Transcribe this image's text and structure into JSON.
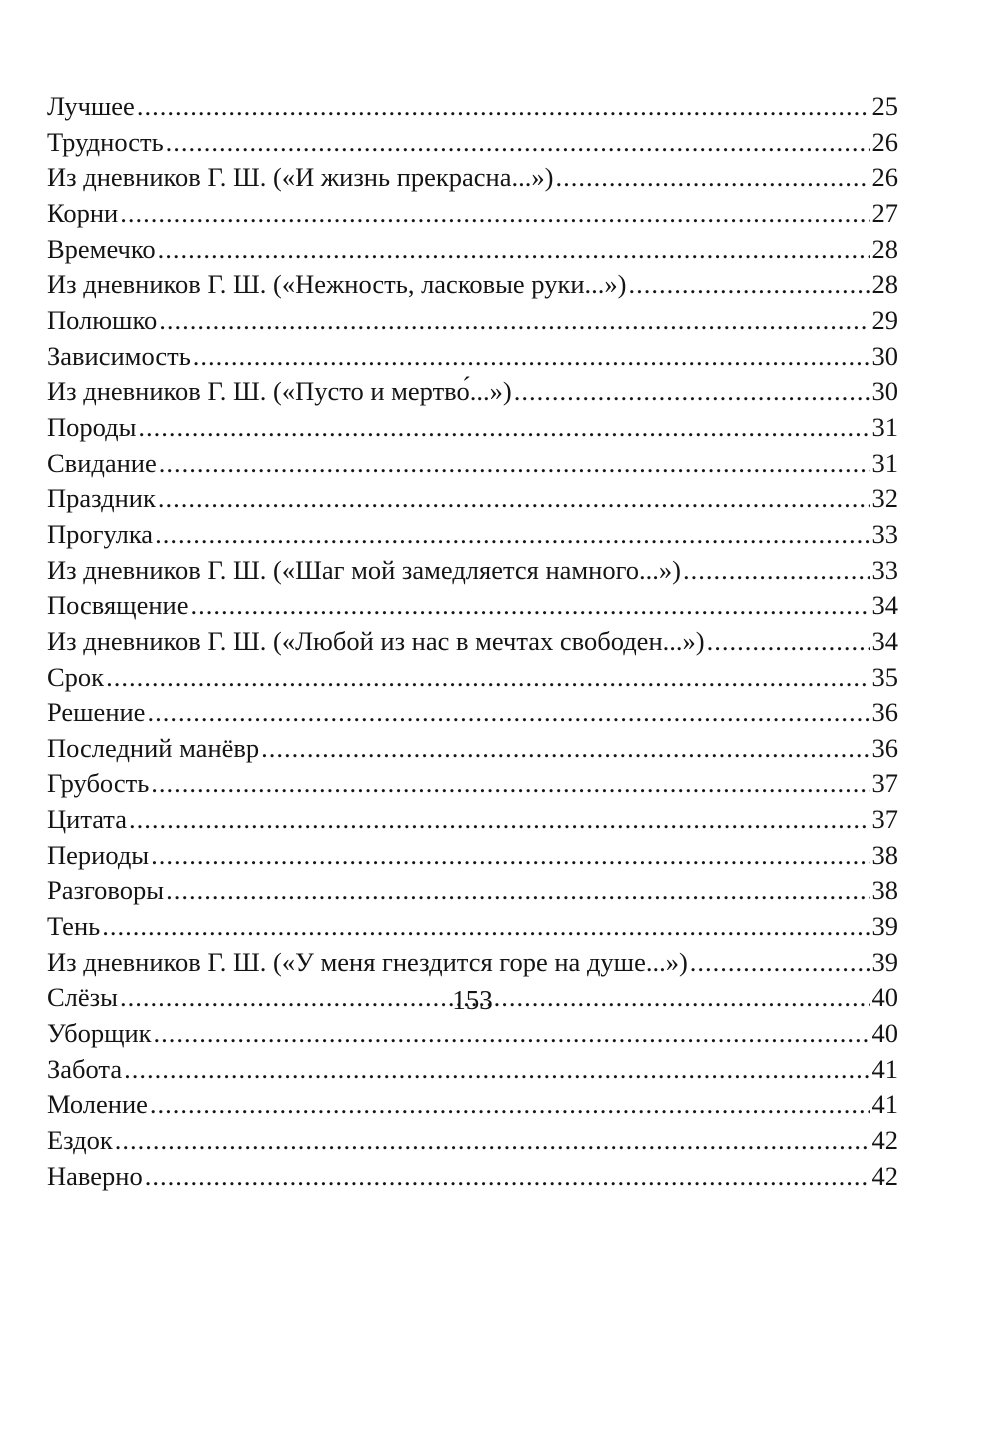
{
  "toc": [
    {
      "title": "Лучшее",
      "page": "25"
    },
    {
      "title": "Трудность",
      "page": "26"
    },
    {
      "title": "Из дневников Г. Ш. («И жизнь прекрасна...»)",
      "page": "26"
    },
    {
      "title": "Корни",
      "page": "27"
    },
    {
      "title": "Времечко",
      "page": "28"
    },
    {
      "title": "Из дневников Г. Ш. («Нежность, ласковые руки...»)",
      "page": "28"
    },
    {
      "title": "Полюшко",
      "page": "29"
    },
    {
      "title": "Зависимость",
      "page": "30"
    },
    {
      "title": "Из дневников Г. Ш. («Пусто и мертво́...»)",
      "page": "30"
    },
    {
      "title": "Породы",
      "page": "31"
    },
    {
      "title": "Свидание",
      "page": "31"
    },
    {
      "title": "Праздник",
      "page": "32"
    },
    {
      "title": "Прогулка",
      "page": "33"
    },
    {
      "title": "Из дневников Г. Ш. («Шаг мой замедляется намного...»)",
      "page": "33"
    },
    {
      "title": "Посвящение",
      "page": "34"
    },
    {
      "title": "Из дневников Г. Ш. («Любой из нас в мечтах свободен...»)",
      "page": "34"
    },
    {
      "title": "Срок",
      "page": "35"
    },
    {
      "title": "Решение",
      "page": "36"
    },
    {
      "title": "Последний манёвр",
      "page": "36"
    },
    {
      "title": "Грубость",
      "page": "37"
    },
    {
      "title": "Цитата",
      "page": "37"
    },
    {
      "title": "Периоды",
      "page": "38"
    },
    {
      "title": "Разговоры",
      "page": "38"
    },
    {
      "title": "Тень",
      "page": "39"
    },
    {
      "title": "Из дневников Г. Ш. («У меня гнездится горе на душе...»)",
      "page": "39"
    },
    {
      "title": "Слёзы",
      "page": "40"
    },
    {
      "title": "Уборщик",
      "page": "40"
    },
    {
      "title": "Забота",
      "page": "41"
    },
    {
      "title": "Моление",
      "page": "41"
    },
    {
      "title": "Ездок",
      "page": "42"
    },
    {
      "title": "Наверно",
      "page": "42"
    }
  ],
  "page_number": "153"
}
